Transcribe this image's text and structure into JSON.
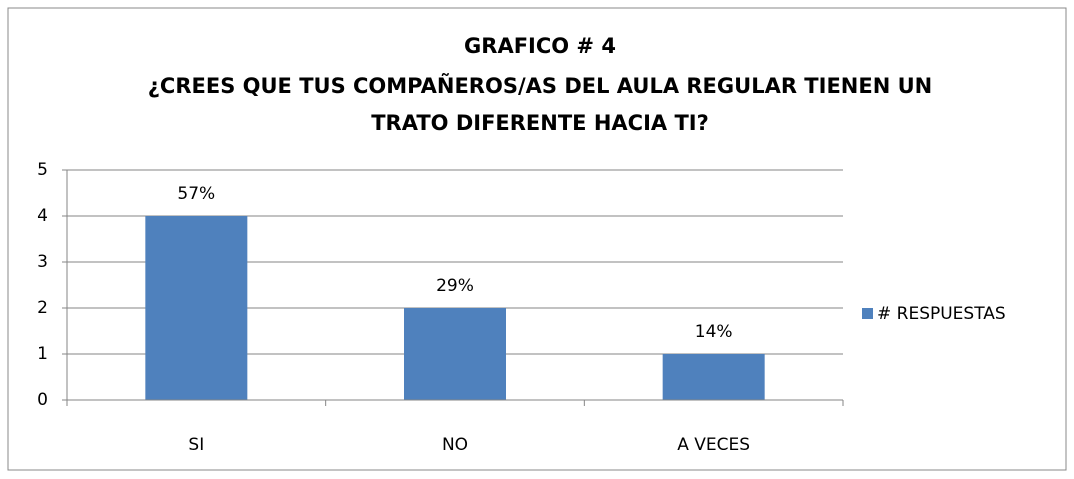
{
  "chart_data": {
    "type": "bar",
    "title": [
      "GRAFICO # 4",
      "¿CREES QUE TUS COMPAÑEROS/AS DEL AULA REGULAR TIENEN UN",
      "TRATO DIFERENTE HACIA TI?"
    ],
    "categories": [
      "SI",
      "NO",
      "A VECES"
    ],
    "series": [
      {
        "name": "# RESPUESTAS",
        "color": "#4f81bd",
        "values": [
          4,
          2,
          1
        ]
      }
    ],
    "data_labels": [
      "57%",
      "29%",
      "14%"
    ],
    "ylim": [
      0,
      5
    ],
    "yticks": [
      0,
      1,
      2,
      3,
      4,
      5
    ],
    "grid": true,
    "legend": "right"
  }
}
